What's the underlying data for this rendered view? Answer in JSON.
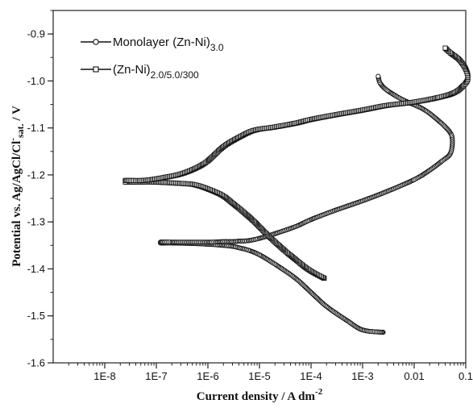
{
  "chart_data": {
    "type": "line",
    "title": "",
    "xlabel": "Current density / A dm",
    "xlabel_sup": "-2",
    "ylabel": "Potential vs. Ag/AgCl/Cl",
    "ylabel_sup": "-",
    "ylabel_sub": "sat.",
    "ylabel_unit": " / V",
    "x_scale": "log",
    "xlim": [
      1e-09,
      0.1
    ],
    "ylim": [
      -1.6,
      -0.85
    ],
    "x_ticks": [
      1e-08,
      1e-07,
      1e-06,
      1e-05,
      0.0001,
      0.001,
      0.01,
      0.1
    ],
    "x_tick_labels": [
      "1E-8",
      "1E-7",
      "1E-6",
      "1E-5",
      "1E-4",
      "1E-3",
      "0.01",
      "0.1"
    ],
    "y_ticks": [
      -1.6,
      -1.5,
      -1.4,
      -1.3,
      -1.2,
      -1.1,
      -1.0,
      -0.9
    ],
    "y_tick_labels": [
      "-1.6",
      "-1.5",
      "-1.4",
      "-1.3",
      "-1.2",
      "-1.1",
      "-1.0",
      "-0.9"
    ],
    "legend_position": "top-left",
    "series": [
      {
        "name": "Monolayer (Zn-Ni)",
        "name_sub": "3.0",
        "marker": "circle",
        "x": [
          0.0025,
          0.001,
          0.0005,
          0.0002,
          0.0001,
          5e-05,
          2e-05,
          1e-05,
          6e-06,
          4e-06,
          3e-06,
          2e-06,
          1.2e-06,
          5e-07,
          2e-07,
          1.2e-07,
          1.2e-07,
          2e-07,
          5e-07,
          1.2e-06,
          2e-06,
          3e-06,
          4e-06,
          6e-06,
          1e-05,
          2e-05,
          5e-05,
          0.0001,
          0.0003,
          0.001,
          0.003,
          0.01,
          0.02,
          0.035,
          0.05,
          0.055,
          0.05,
          0.03,
          0.015,
          0.006,
          0.003,
          0.0022,
          0.002
        ],
        "y": [
          -1.535,
          -1.53,
          -1.51,
          -1.48,
          -1.45,
          -1.42,
          -1.39,
          -1.37,
          -1.36,
          -1.355,
          -1.352,
          -1.35,
          -1.348,
          -1.346,
          -1.345,
          -1.345,
          -1.343,
          -1.343,
          -1.343,
          -1.343,
          -1.342,
          -1.342,
          -1.341,
          -1.34,
          -1.335,
          -1.325,
          -1.31,
          -1.295,
          -1.275,
          -1.255,
          -1.235,
          -1.21,
          -1.19,
          -1.17,
          -1.155,
          -1.13,
          -1.11,
          -1.085,
          -1.06,
          -1.04,
          -1.02,
          -1.005,
          -0.99
        ]
      },
      {
        "name": "(Zn-Ni)",
        "name_sub": "2.0/5.0/300",
        "marker": "square",
        "x": [
          0.00018,
          0.00012,
          8e-05,
          5e-05,
          3e-05,
          1.5e-05,
          8e-06,
          5e-06,
          3e-06,
          2e-06,
          1.3e-06,
          8e-07,
          5e-07,
          2.8e-07,
          1.4e-07,
          8e-08,
          5e-08,
          2.5e-08,
          2.5e-08,
          5e-08,
          8e-08,
          1.5e-07,
          3e-07,
          6e-07,
          1e-06,
          2e-06,
          4e-06,
          8e-06,
          2e-05,
          5e-05,
          0.0001,
          0.0003,
          0.001,
          0.003,
          0.01,
          0.03,
          0.06,
          0.09,
          0.11,
          0.1,
          0.075,
          0.05,
          0.04
        ],
        "y": [
          -1.42,
          -1.41,
          -1.398,
          -1.38,
          -1.36,
          -1.33,
          -1.3,
          -1.28,
          -1.26,
          -1.245,
          -1.235,
          -1.226,
          -1.22,
          -1.218,
          -1.216,
          -1.215,
          -1.215,
          -1.215,
          -1.212,
          -1.212,
          -1.21,
          -1.205,
          -1.198,
          -1.185,
          -1.17,
          -1.14,
          -1.12,
          -1.105,
          -1.098,
          -1.09,
          -1.082,
          -1.072,
          -1.062,
          -1.052,
          -1.045,
          -1.035,
          -1.025,
          -1.01,
          -0.995,
          -0.975,
          -0.955,
          -0.94,
          -0.93
        ]
      }
    ]
  }
}
